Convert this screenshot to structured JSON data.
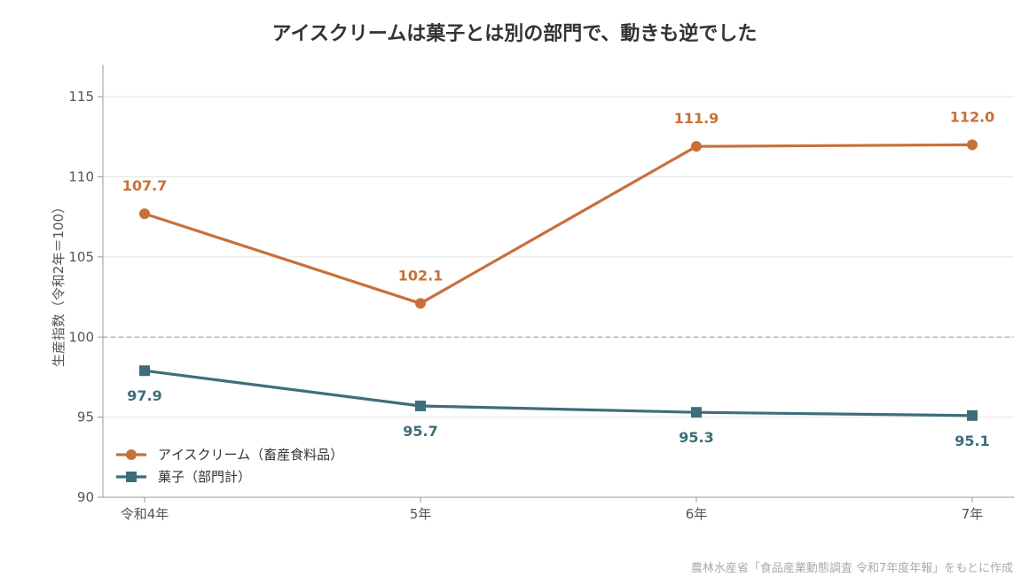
{
  "chart_data": {
    "type": "line",
    "title": "アイスクリームは菓子とは別の部門で、動きも逆でした",
    "ylabel": "生産指数（令和2年＝100）",
    "xlabel": "",
    "categories": [
      "令和4年",
      "5年",
      "6年",
      "7年"
    ],
    "ylim": [
      90,
      117
    ],
    "yticks": [
      90,
      95,
      100,
      105,
      110,
      115
    ],
    "reference_line": 100,
    "grid": "horizontal",
    "legend_position": "bottom-left",
    "series": [
      {
        "name": "アイスクリーム（畜産食料品）",
        "values": [
          107.7,
          102.1,
          111.9,
          112.0
        ],
        "labels": [
          "107.7",
          "102.1",
          "111.9",
          "112.0"
        ],
        "color": "#c8703a",
        "marker": "circle"
      },
      {
        "name": "菓子（部門計）",
        "values": [
          97.9,
          95.7,
          95.3,
          95.1
        ],
        "labels": [
          "97.9",
          "95.7",
          "95.3",
          "95.1"
        ],
        "color": "#3e6e7a",
        "marker": "square"
      }
    ],
    "source": "農林水産省「食品産業動態調査 令和7年度年報」をもとに作成"
  }
}
